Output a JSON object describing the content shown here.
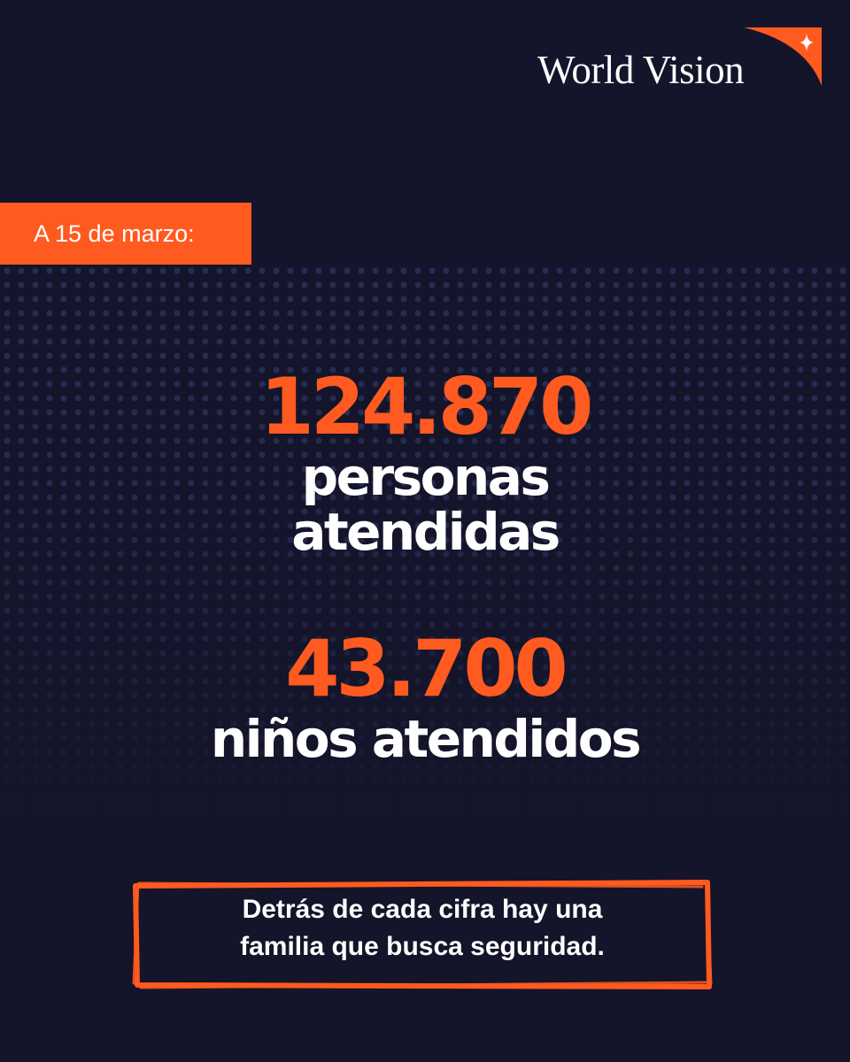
{
  "brand": {
    "name": "World Vision",
    "accent_color": "#ff5a1f",
    "background_color": "#14142a",
    "icon": "star-sparkle-icon"
  },
  "date_tag": "A 15 de marzo:",
  "stats": [
    {
      "value": "124.870",
      "label_line1": "personas",
      "label_line2": "atendidas"
    },
    {
      "value": "43.700",
      "label_line1": "niños atendidos"
    }
  ],
  "quote": {
    "line1": "Detrás de cada cifra hay una",
    "line2": "familia que busca seguridad."
  }
}
